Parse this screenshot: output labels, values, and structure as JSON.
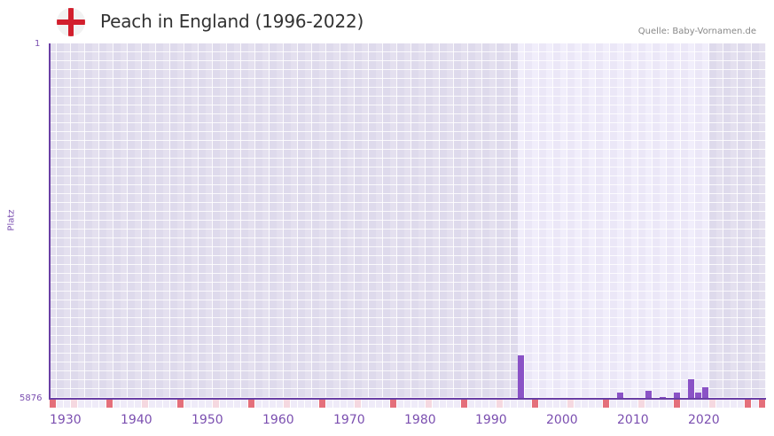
{
  "header": {
    "title": "Peach in England (1996-2022)",
    "flag_icon": "england-flag-icon",
    "source": "Quelle: Baby-Vornamen.de"
  },
  "colors": {
    "bar": "#8a52c6",
    "axis": "#6a3fa5",
    "decade_marker": "#e46f7b",
    "half_decade_marker": "#f5d8e0",
    "plot_bg": "#e4e0ef",
    "highlight_bg": "#f1eefb",
    "flag_red": "#d21f2d"
  },
  "axis": {
    "y_top_label": "1",
    "y_bottom_label": "5876",
    "y_title": "Platz",
    "x_labels": [
      "1930",
      "1940",
      "1950",
      "1960",
      "1970",
      "1980",
      "1990",
      "2000",
      "2010",
      "2020"
    ]
  },
  "chart_data": {
    "type": "bar",
    "title": "Peach in England (1996-2022)",
    "xlabel": "",
    "ylabel": "Platz",
    "y_inverted": true,
    "ylim": [
      5876,
      1
    ],
    "xlim": [
      1930,
      2030
    ],
    "highlight_range": [
      1996,
      2022
    ],
    "x_tick_labels": [
      "1930",
      "1940",
      "1950",
      "1960",
      "1970",
      "1980",
      "1990",
      "2000",
      "2010",
      "2020"
    ],
    "grid": true,
    "legend": null,
    "categories": [
      1996,
      2010,
      2014,
      2016,
      2018,
      2020,
      2021,
      2022
    ],
    "values": [
      5158,
      5773,
      5744,
      5854,
      5773,
      5554,
      5773,
      5686
    ],
    "source": "Quelle: Baby-Vornamen.de"
  }
}
